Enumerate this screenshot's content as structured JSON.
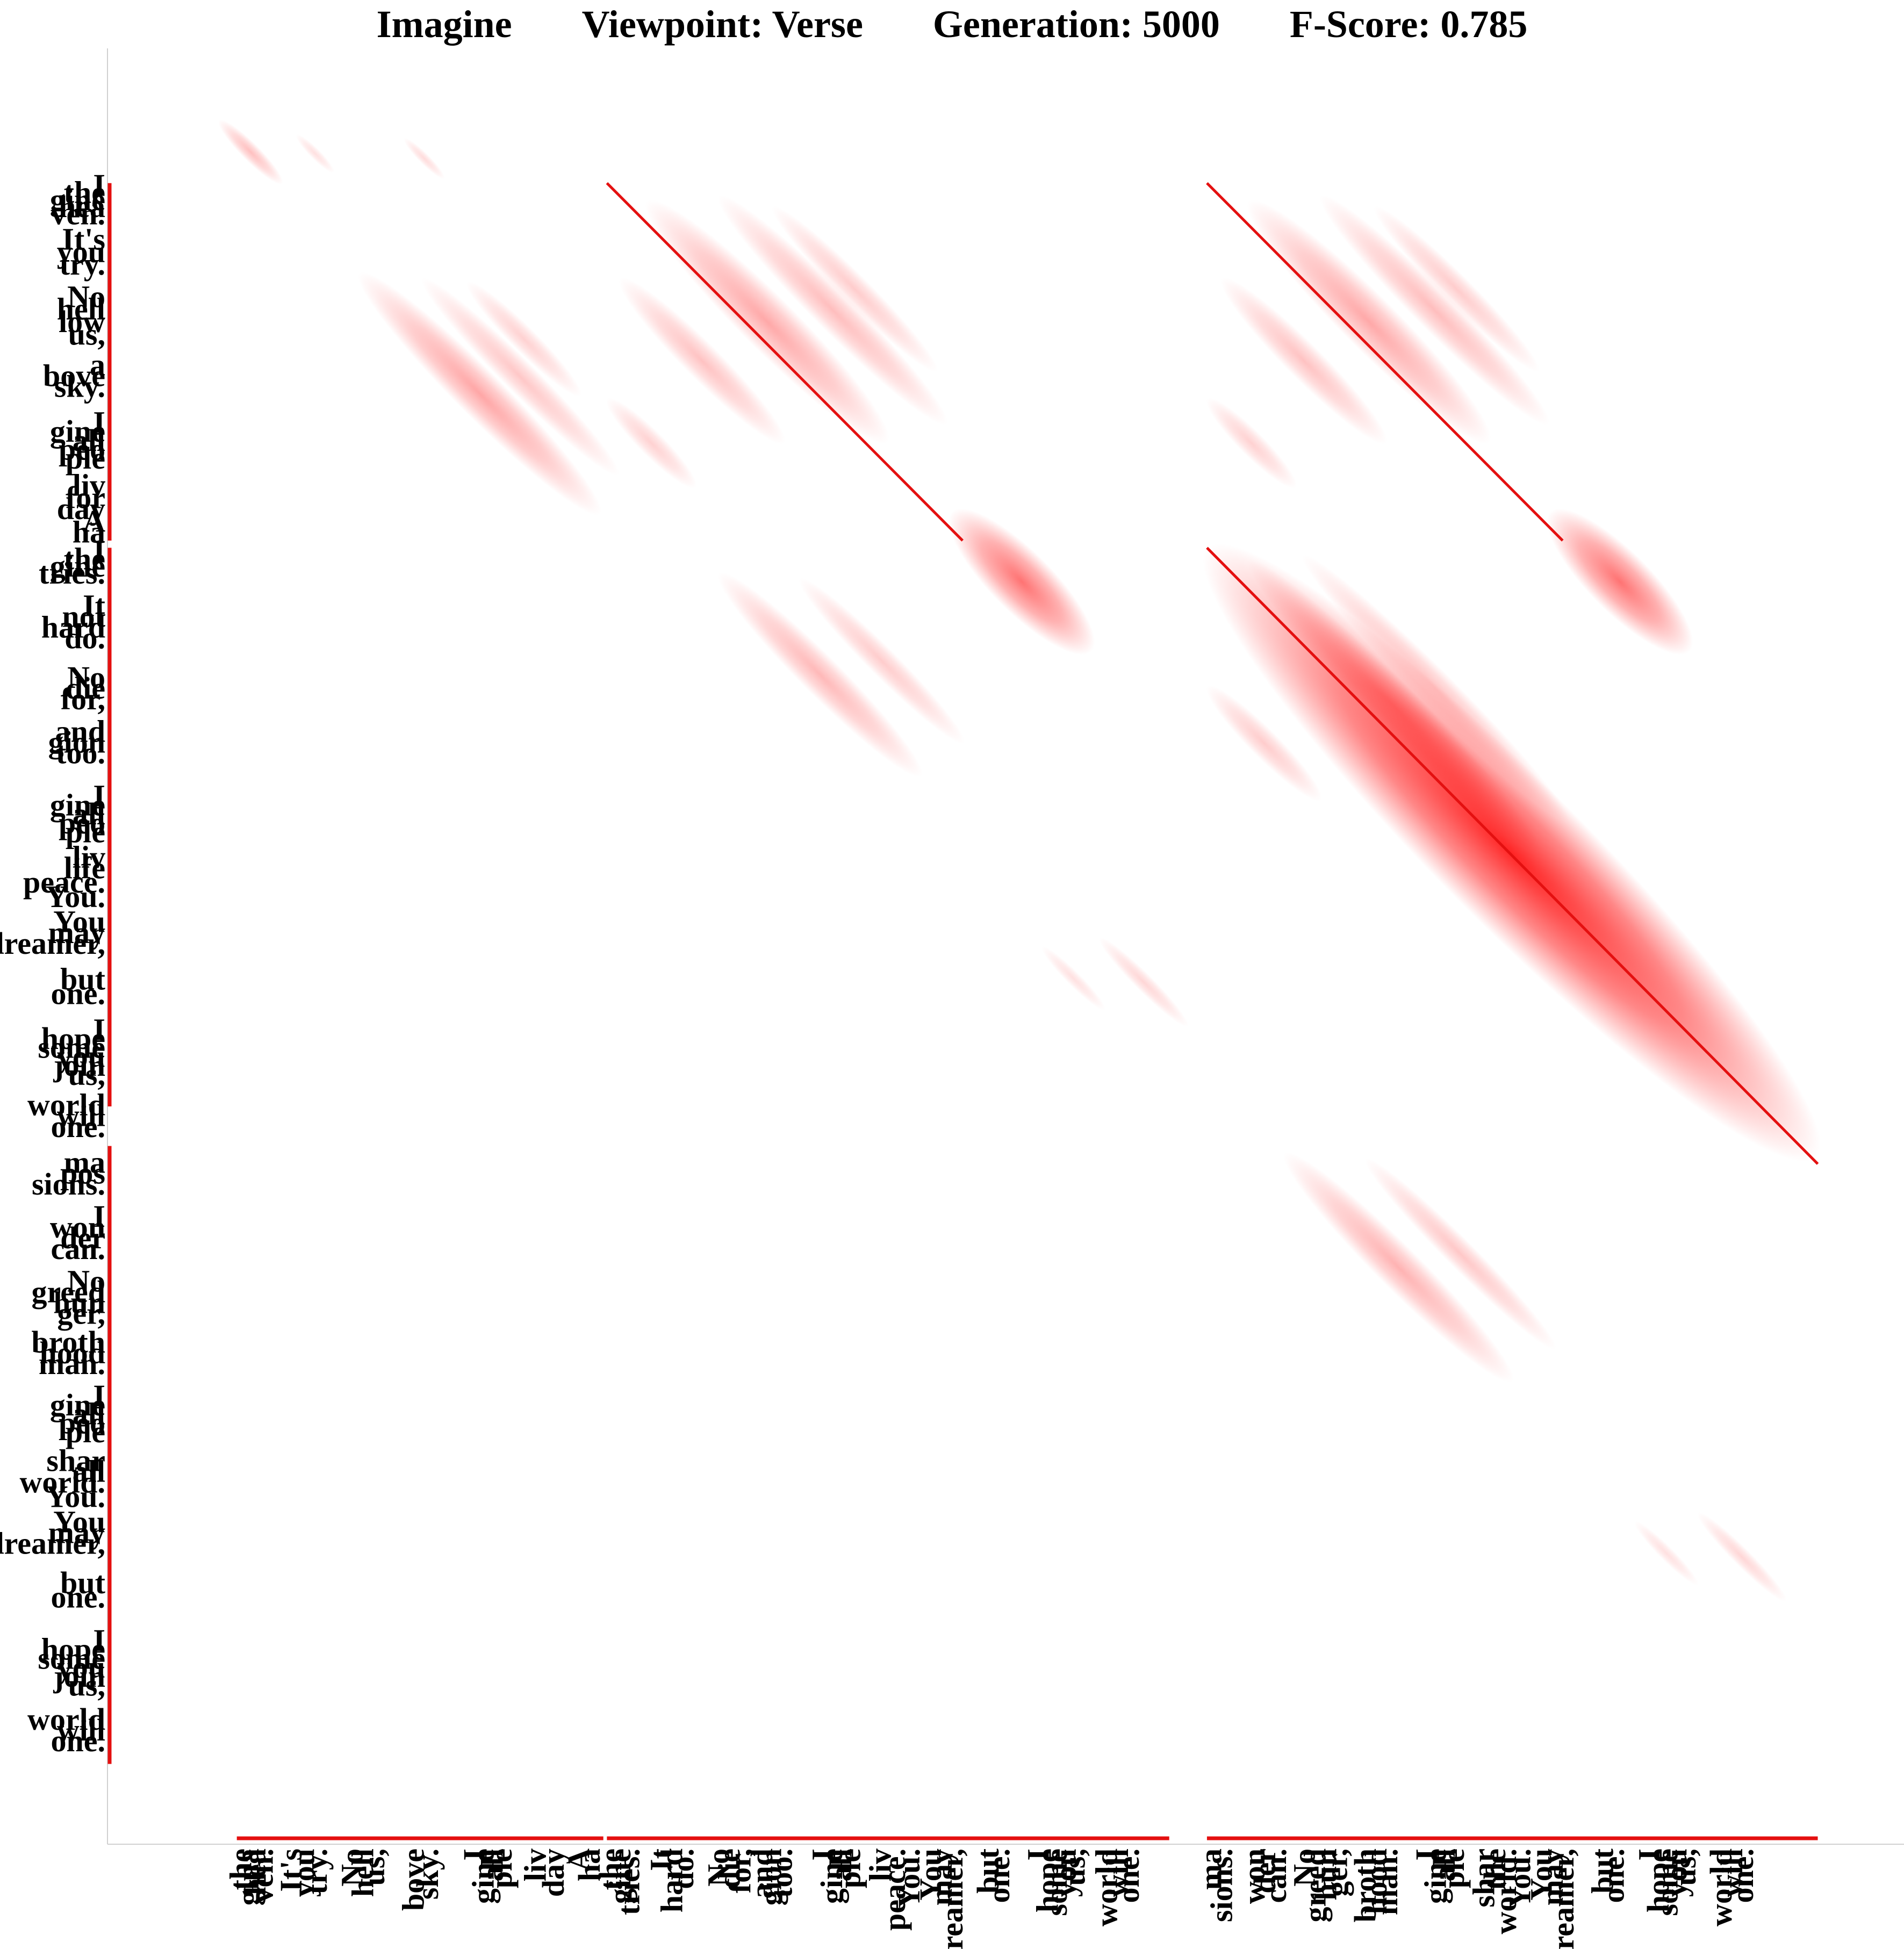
{
  "title": {
    "song": "Imagine",
    "viewpoint": "Viewpoint: Verse",
    "generation": "Generation: 5000",
    "fscore": "F-Score: 0.785"
  },
  "chart_data": {
    "type": "heatmap",
    "title": "Imagine Viewpoint: Verse Generation: 5000 F-Score: 0.785",
    "xlabel": "",
    "ylabel": "",
    "colorscale": {
      "low": "#ffffff",
      "high": "#ff0000"
    },
    "marker_color": "#e41010",
    "grid": false,
    "size": 1000,
    "segments_x": [
      [
        72,
        276
      ],
      [
        278,
        591
      ],
      [
        612,
        952
      ]
    ],
    "segments_y": [
      [
        75,
        274
      ],
      [
        278,
        589
      ],
      [
        611,
        955
      ]
    ],
    "diagonals": [
      {
        "start": [
          278,
          75
        ],
        "end": [
          476,
          274
        ]
      },
      {
        "start": [
          612,
          75
        ],
        "end": [
          810,
          274
        ]
      },
      {
        "start": [
          612,
          278
        ],
        "end": [
          952,
          621
        ]
      }
    ],
    "blobs": [
      {
        "x": 62,
        "y": 40,
        "len": 50,
        "w": 10,
        "a": 0.25
      },
      {
        "x": 105,
        "y": 48,
        "len": 30,
        "w": 6,
        "a": 0.12
      },
      {
        "x": 165,
        "y": 50,
        "len": 32,
        "w": 6,
        "a": 0.14
      },
      {
        "x": 140,
        "y": 125,
        "len": 190,
        "w": 26,
        "a": 0.35
      },
      {
        "x": 175,
        "y": 128,
        "len": 155,
        "w": 18,
        "a": 0.22
      },
      {
        "x": 200,
        "y": 130,
        "len": 90,
        "w": 14,
        "a": 0.18
      },
      {
        "x": 300,
        "y": 85,
        "len": 190,
        "w": 30,
        "a": 0.34
      },
      {
        "x": 340,
        "y": 82,
        "len": 180,
        "w": 22,
        "a": 0.26
      },
      {
        "x": 370,
        "y": 88,
        "len": 130,
        "w": 16,
        "a": 0.2
      },
      {
        "x": 285,
        "y": 128,
        "len": 130,
        "w": 20,
        "a": 0.24
      },
      {
        "x": 278,
        "y": 195,
        "len": 70,
        "w": 14,
        "a": 0.18
      },
      {
        "x": 470,
        "y": 258,
        "len": 110,
        "w": 34,
        "a": 0.55
      },
      {
        "x": 340,
        "y": 292,
        "len": 160,
        "w": 22,
        "a": 0.28
      },
      {
        "x": 385,
        "y": 295,
        "len": 130,
        "w": 16,
        "a": 0.2
      },
      {
        "x": 520,
        "y": 500,
        "len": 50,
        "w": 8,
        "a": 0.12
      },
      {
        "x": 552,
        "y": 495,
        "len": 70,
        "w": 10,
        "a": 0.16
      },
      {
        "x": 635,
        "y": 85,
        "len": 190,
        "w": 30,
        "a": 0.34
      },
      {
        "x": 675,
        "y": 82,
        "len": 180,
        "w": 22,
        "a": 0.26
      },
      {
        "x": 705,
        "y": 88,
        "len": 130,
        "w": 16,
        "a": 0.2
      },
      {
        "x": 620,
        "y": 128,
        "len": 130,
        "w": 20,
        "a": 0.24
      },
      {
        "x": 612,
        "y": 195,
        "len": 70,
        "w": 14,
        "a": 0.18
      },
      {
        "x": 803,
        "y": 258,
        "len": 110,
        "w": 34,
        "a": 0.55
      },
      {
        "x": 612,
        "y": 278,
        "len": 480,
        "w": 80,
        "a": 0.85
      },
      {
        "x": 635,
        "y": 285,
        "len": 230,
        "w": 26,
        "a": 0.3
      },
      {
        "x": 665,
        "y": 282,
        "len": 210,
        "w": 20,
        "a": 0.24
      },
      {
        "x": 612,
        "y": 355,
        "len": 90,
        "w": 16,
        "a": 0.2
      },
      {
        "x": 655,
        "y": 615,
        "len": 180,
        "w": 24,
        "a": 0.3
      },
      {
        "x": 700,
        "y": 618,
        "len": 150,
        "w": 16,
        "a": 0.22
      },
      {
        "x": 850,
        "y": 820,
        "len": 50,
        "w": 8,
        "a": 0.12
      },
      {
        "x": 885,
        "y": 815,
        "len": 70,
        "w": 10,
        "a": 0.16
      }
    ],
    "x_ticks": [
      {
        "pos": 76,
        "label": "the"
      },
      {
        "pos": 80,
        "label": "gina"
      },
      {
        "pos": 84,
        "label": "hea"
      },
      {
        "pos": 88,
        "label": "ven."
      },
      {
        "pos": 104,
        "label": "It's"
      },
      {
        "pos": 111,
        "label": "you"
      },
      {
        "pos": 118,
        "label": "try."
      },
      {
        "pos": 138,
        "label": "No"
      },
      {
        "pos": 144,
        "label": "hell"
      },
      {
        "pos": 150,
        "label": "us,"
      },
      {
        "pos": 172,
        "label": "bove"
      },
      {
        "pos": 180,
        "label": "sky."
      },
      {
        "pos": 206,
        "label": "I"
      },
      {
        "pos": 211,
        "label": "gine"
      },
      {
        "pos": 216,
        "label": "all"
      },
      {
        "pos": 221,
        "label": "ple"
      },
      {
        "pos": 240,
        "label": "liv"
      },
      {
        "pos": 250,
        "label": "day"
      },
      {
        "pos": 264,
        "label": "A"
      },
      {
        "pos": 270,
        "label": "ha"
      },
      {
        "pos": 282,
        "label": "the"
      },
      {
        "pos": 287,
        "label": "gine"
      },
      {
        "pos": 292,
        "label": "tries."
      },
      {
        "pos": 310,
        "label": "It"
      },
      {
        "pos": 316,
        "label": "hard"
      },
      {
        "pos": 322,
        "label": "do."
      },
      {
        "pos": 342,
        "label": "No"
      },
      {
        "pos": 348,
        "label": "die"
      },
      {
        "pos": 354,
        "label": "for,"
      },
      {
        "pos": 366,
        "label": "and"
      },
      {
        "pos": 371,
        "label": "gion"
      },
      {
        "pos": 377,
        "label": "too."
      },
      {
        "pos": 400,
        "label": "I"
      },
      {
        "pos": 405,
        "label": "gine"
      },
      {
        "pos": 410,
        "label": "all"
      },
      {
        "pos": 415,
        "label": "ple"
      },
      {
        "pos": 432,
        "label": "liv"
      },
      {
        "pos": 440,
        "label": "peace."
      },
      {
        "pos": 448,
        "label": "You."
      },
      {
        "pos": 460,
        "label": "You"
      },
      {
        "pos": 466,
        "label": "may"
      },
      {
        "pos": 472,
        "label": "dreamer,"
      },
      {
        "pos": 492,
        "label": "but"
      },
      {
        "pos": 498,
        "label": "one."
      },
      {
        "pos": 520,
        "label": "I"
      },
      {
        "pos": 525,
        "label": "hope"
      },
      {
        "pos": 530,
        "label": "some"
      },
      {
        "pos": 535,
        "label": "you"
      },
      {
        "pos": 540,
        "label": "us,"
      },
      {
        "pos": 558,
        "label": "world"
      },
      {
        "pos": 564,
        "label": "will"
      },
      {
        "pos": 570,
        "label": "one."
      },
      {
        "pos": 616,
        "label": "ma"
      },
      {
        "pos": 622,
        "label": "sions."
      },
      {
        "pos": 640,
        "label": "won"
      },
      {
        "pos": 646,
        "label": "der"
      },
      {
        "pos": 652,
        "label": "can."
      },
      {
        "pos": 668,
        "label": "No"
      },
      {
        "pos": 674,
        "label": "greed"
      },
      {
        "pos": 680,
        "label": "hun"
      },
      {
        "pos": 686,
        "label": "ger,"
      },
      {
        "pos": 702,
        "label": "broth"
      },
      {
        "pos": 708,
        "label": "hood"
      },
      {
        "pos": 714,
        "label": "man."
      },
      {
        "pos": 736,
        "label": "I"
      },
      {
        "pos": 741,
        "label": "gine"
      },
      {
        "pos": 746,
        "label": "all"
      },
      {
        "pos": 751,
        "label": "ple"
      },
      {
        "pos": 768,
        "label": "shar"
      },
      {
        "pos": 774,
        "label": "the"
      },
      {
        "pos": 780,
        "label": "world."
      },
      {
        "pos": 788,
        "label": "You."
      },
      {
        "pos": 800,
        "label": "You"
      },
      {
        "pos": 806,
        "label": "may"
      },
      {
        "pos": 812,
        "label": "dreamer,"
      },
      {
        "pos": 834,
        "label": "but"
      },
      {
        "pos": 840,
        "label": "one."
      },
      {
        "pos": 860,
        "label": "I"
      },
      {
        "pos": 865,
        "label": "hope"
      },
      {
        "pos": 870,
        "label": "some"
      },
      {
        "pos": 875,
        "label": "you"
      },
      {
        "pos": 880,
        "label": "us,"
      },
      {
        "pos": 900,
        "label": "world"
      },
      {
        "pos": 906,
        "label": "will"
      },
      {
        "pos": 912,
        "label": "one."
      }
    ],
    "y_ticks": [
      {
        "pos": 78,
        "label": "I"
      },
      {
        "pos": 82,
        "label": "the"
      },
      {
        "pos": 86,
        "label": "gine"
      },
      {
        "pos": 90,
        "label": "hea"
      },
      {
        "pos": 94,
        "label": "ven."
      },
      {
        "pos": 108,
        "label": "It's"
      },
      {
        "pos": 115,
        "label": "you"
      },
      {
        "pos": 122,
        "label": "try."
      },
      {
        "pos": 140,
        "label": "No"
      },
      {
        "pos": 147,
        "label": "hell"
      },
      {
        "pos": 154,
        "label": "low"
      },
      {
        "pos": 161,
        "label": "us,"
      },
      {
        "pos": 178,
        "label": "a"
      },
      {
        "pos": 184,
        "label": "bove"
      },
      {
        "pos": 190,
        "label": "sky."
      },
      {
        "pos": 210,
        "label": "I"
      },
      {
        "pos": 215,
        "label": "gine"
      },
      {
        "pos": 220,
        "label": "all"
      },
      {
        "pos": 225,
        "label": "peo"
      },
      {
        "pos": 230,
        "label": "ple"
      },
      {
        "pos": 245,
        "label": "liv"
      },
      {
        "pos": 252,
        "label": "for"
      },
      {
        "pos": 258,
        "label": "day"
      },
      {
        "pos": 265,
        "label": "A"
      },
      {
        "pos": 271,
        "label": "ha"
      },
      {
        "pos": 282,
        "label": "I"
      },
      {
        "pos": 286,
        "label": "the"
      },
      {
        "pos": 290,
        "label": "gine"
      },
      {
        "pos": 294,
        "label": "tries."
      },
      {
        "pos": 312,
        "label": "It"
      },
      {
        "pos": 318,
        "label": "not"
      },
      {
        "pos": 324,
        "label": "hard"
      },
      {
        "pos": 330,
        "label": "do."
      },
      {
        "pos": 352,
        "label": "No"
      },
      {
        "pos": 358,
        "label": "die"
      },
      {
        "pos": 364,
        "label": "for,"
      },
      {
        "pos": 382,
        "label": "and"
      },
      {
        "pos": 388,
        "label": "gion"
      },
      {
        "pos": 394,
        "label": "too."
      },
      {
        "pos": 418,
        "label": "I"
      },
      {
        "pos": 423,
        "label": "gine"
      },
      {
        "pos": 428,
        "label": "all"
      },
      {
        "pos": 433,
        "label": "peo"
      },
      {
        "pos": 438,
        "label": "ple"
      },
      {
        "pos": 452,
        "label": "liv"
      },
      {
        "pos": 458,
        "label": "life"
      },
      {
        "pos": 466,
        "label": "peace."
      },
      {
        "pos": 474,
        "label": "You."
      },
      {
        "pos": 488,
        "label": "You"
      },
      {
        "pos": 494,
        "label": "may"
      },
      {
        "pos": 500,
        "label": "dreamer,"
      },
      {
        "pos": 520,
        "label": "but"
      },
      {
        "pos": 528,
        "label": "one."
      },
      {
        "pos": 548,
        "label": "I"
      },
      {
        "pos": 553,
        "label": "hope"
      },
      {
        "pos": 558,
        "label": "some"
      },
      {
        "pos": 563,
        "label": "you"
      },
      {
        "pos": 568,
        "label": "join"
      },
      {
        "pos": 573,
        "label": "us,"
      },
      {
        "pos": 590,
        "label": "world"
      },
      {
        "pos": 596,
        "label": "will"
      },
      {
        "pos": 602,
        "label": "one."
      },
      {
        "pos": 622,
        "label": "ma"
      },
      {
        "pos": 628,
        "label": "pos"
      },
      {
        "pos": 634,
        "label": "sions."
      },
      {
        "pos": 652,
        "label": "I"
      },
      {
        "pos": 658,
        "label": "won"
      },
      {
        "pos": 664,
        "label": "der"
      },
      {
        "pos": 670,
        "label": "can."
      },
      {
        "pos": 688,
        "label": "No"
      },
      {
        "pos": 694,
        "label": "greed"
      },
      {
        "pos": 700,
        "label": "hun"
      },
      {
        "pos": 706,
        "label": "ger,"
      },
      {
        "pos": 722,
        "label": "broth"
      },
      {
        "pos": 728,
        "label": "hood"
      },
      {
        "pos": 734,
        "label": "man."
      },
      {
        "pos": 752,
        "label": "I"
      },
      {
        "pos": 757,
        "label": "gine"
      },
      {
        "pos": 762,
        "label": "all"
      },
      {
        "pos": 767,
        "label": "peo"
      },
      {
        "pos": 772,
        "label": "ple"
      },
      {
        "pos": 788,
        "label": "shar"
      },
      {
        "pos": 794,
        "label": "all"
      },
      {
        "pos": 800,
        "label": "world."
      },
      {
        "pos": 808,
        "label": "You."
      },
      {
        "pos": 822,
        "label": "You"
      },
      {
        "pos": 828,
        "label": "may"
      },
      {
        "pos": 834,
        "label": "dreamer,"
      },
      {
        "pos": 856,
        "label": "but"
      },
      {
        "pos": 864,
        "label": "one."
      },
      {
        "pos": 888,
        "label": "I"
      },
      {
        "pos": 893,
        "label": "hope"
      },
      {
        "pos": 898,
        "label": "some"
      },
      {
        "pos": 903,
        "label": "you"
      },
      {
        "pos": 908,
        "label": "join"
      },
      {
        "pos": 913,
        "label": "us,"
      },
      {
        "pos": 932,
        "label": "world"
      },
      {
        "pos": 938,
        "label": "will"
      },
      {
        "pos": 944,
        "label": "one."
      }
    ]
  }
}
